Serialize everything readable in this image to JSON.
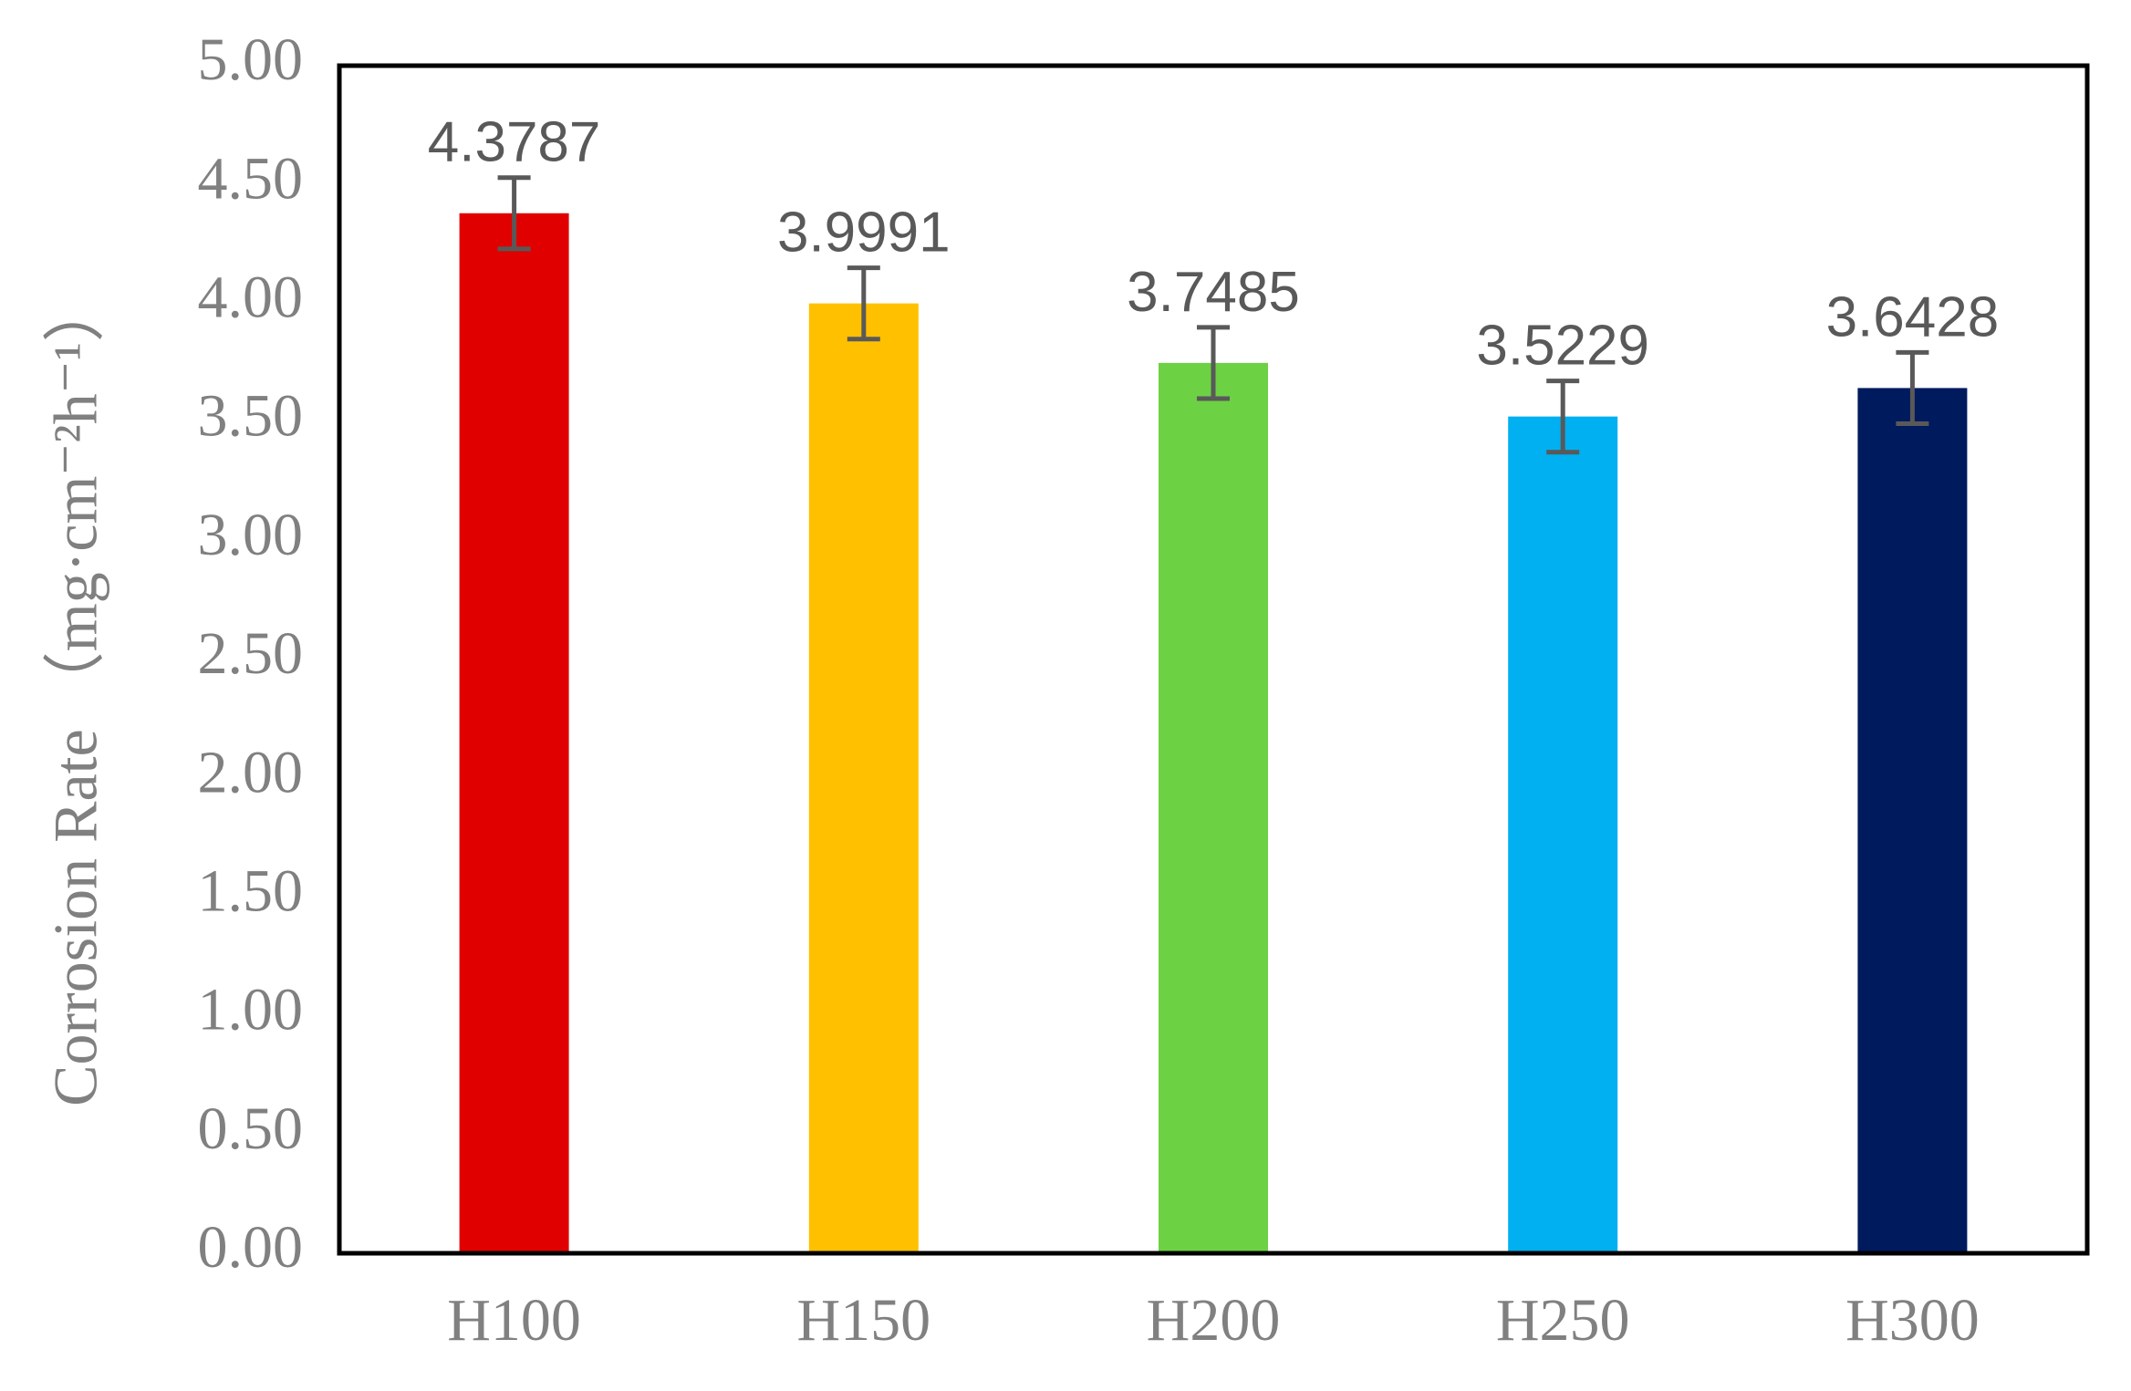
{
  "chart_data": {
    "type": "bar",
    "y_label": "Corrosion Rate （mg·cm⁻²h⁻¹）",
    "categories": [
      "H100",
      "H150",
      "H200",
      "H250",
      "H300"
    ],
    "values": [
      4.3787,
      3.9991,
      3.7485,
      3.5229,
      3.6428
    ],
    "errors": [
      0.15,
      0.15,
      0.15,
      0.15,
      0.15
    ],
    "colors": [
      "#e00000",
      "#ffc000",
      "#6dd144",
      "#00b0f0",
      "#001a5e"
    ],
    "error_color": "#595959",
    "ylim": [
      0,
      5
    ],
    "yticks": [
      {
        "value": 0,
        "label": "0.00"
      },
      {
        "value": 0.5,
        "label": "0.50"
      },
      {
        "value": 1,
        "label": "1.00"
      },
      {
        "value": 1.5,
        "label": "1.50"
      },
      {
        "value": 2,
        "label": "2.00"
      },
      {
        "value": 2.5,
        "label": "2.50"
      },
      {
        "value": 3,
        "label": "3.00"
      },
      {
        "value": 3.5,
        "label": "3.50"
      },
      {
        "value": 4,
        "label": "4.00"
      },
      {
        "value": 4.5,
        "label": "4.50"
      },
      {
        "value": 5,
        "label": "5.00"
      }
    ],
    "grid": false
  }
}
